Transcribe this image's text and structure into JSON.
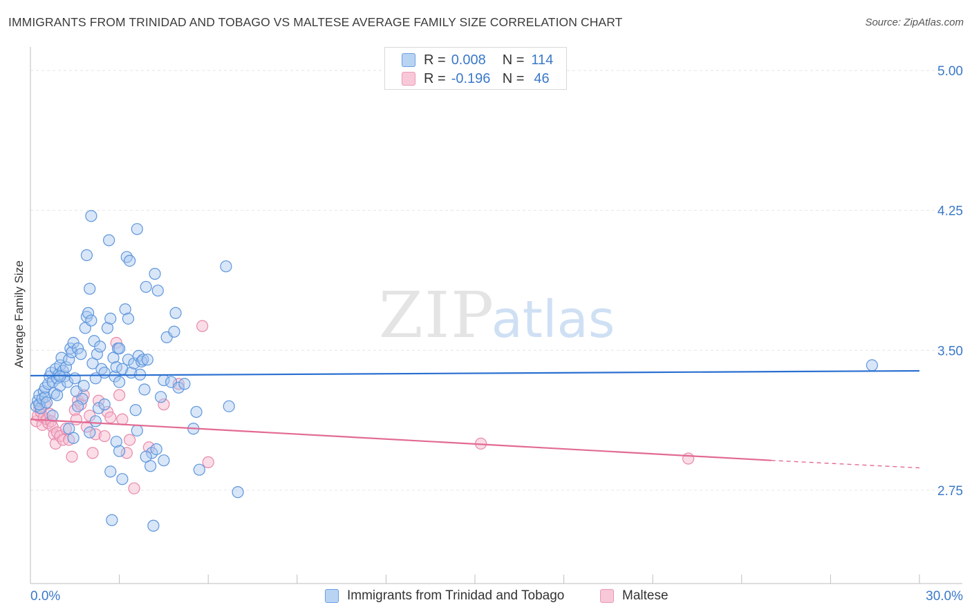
{
  "title": "IMMIGRANTS FROM TRINIDAD AND TOBAGO VS MALTESE AVERAGE FAMILY SIZE CORRELATION CHART",
  "source": "Source: ZipAtlas.com",
  "watermark": {
    "zip": "ZIP",
    "atlas": "atlas"
  },
  "legend": {
    "rows": [
      {
        "r_label": "R =",
        "r_value": "0.008",
        "n_label": "N =",
        "n_value": "114"
      },
      {
        "r_label": "R =",
        "r_value": "-0.196",
        "n_label": "N =",
        "n_value": "46"
      }
    ]
  },
  "colors": {
    "blue_fill": "#a8c8f0",
    "blue_stroke": "#5d95dc",
    "blue_line": "#2a6fd0",
    "pink_fill": "#f6bcd0",
    "pink_stroke": "#e888aa",
    "pink_line": "#e26a93",
    "tick_text": "#3a78c9",
    "grid": "#e6e6e6"
  },
  "chart_data": {
    "type": "scatter",
    "title": "IMMIGRANTS FROM TRINIDAD AND TOBAGO VS MALTESE AVERAGE FAMILY SIZE CORRELATION CHART",
    "xlabel": "",
    "ylabel": "Average Family Size",
    "xlim": [
      0,
      30
    ],
    "ylim": [
      2.25,
      5.1
    ],
    "x_tick_labels": [
      "0.0%",
      "30.0%"
    ],
    "y_ticks": [
      2.75,
      3.5,
      4.25,
      5.0
    ],
    "y_tick_labels": [
      "2.75",
      "3.50",
      "4.25",
      "5.00"
    ],
    "legend_position": "bottom",
    "series": [
      {
        "name": "Immigrants from Trinidad and Tobago",
        "r": 0.008,
        "n": 114,
        "trend": {
          "x0": 0,
          "y0": 3.364,
          "x1": 30,
          "y1": 3.39
        },
        "points": [
          [
            0.2,
            3.2
          ],
          [
            0.25,
            3.23
          ],
          [
            0.3,
            3.26
          ],
          [
            0.35,
            3.19
          ],
          [
            0.3,
            3.21
          ],
          [
            0.4,
            3.24
          ],
          [
            0.45,
            3.28
          ],
          [
            0.5,
            3.25
          ],
          [
            0.5,
            3.3
          ],
          [
            0.55,
            3.22
          ],
          [
            0.6,
            3.32
          ],
          [
            0.65,
            3.36
          ],
          [
            0.7,
            3.38
          ],
          [
            0.75,
            3.33
          ],
          [
            0.8,
            3.27
          ],
          [
            0.85,
            3.4
          ],
          [
            0.9,
            3.35
          ],
          [
            0.95,
            3.37
          ],
          [
            1.0,
            3.42
          ],
          [
            1.0,
            3.31
          ],
          [
            1.05,
            3.46
          ],
          [
            1.1,
            3.39
          ],
          [
            1.15,
            3.36
          ],
          [
            1.2,
            3.41
          ],
          [
            1.25,
            3.33
          ],
          [
            1.3,
            3.45
          ],
          [
            1.35,
            3.51
          ],
          [
            1.4,
            3.49
          ],
          [
            1.45,
            3.54
          ],
          [
            1.5,
            3.35
          ],
          [
            1.55,
            3.28
          ],
          [
            1.6,
            3.51
          ],
          [
            1.7,
            3.48
          ],
          [
            1.75,
            3.24
          ],
          [
            1.8,
            3.31
          ],
          [
            1.85,
            3.62
          ],
          [
            1.9,
            3.68
          ],
          [
            1.95,
            3.7
          ],
          [
            2.0,
            3.83
          ],
          [
            2.05,
            3.66
          ],
          [
            2.1,
            3.43
          ],
          [
            2.15,
            3.55
          ],
          [
            2.2,
            3.35
          ],
          [
            2.25,
            3.48
          ],
          [
            2.3,
            3.19
          ],
          [
            2.35,
            3.52
          ],
          [
            2.4,
            3.4
          ],
          [
            2.5,
            3.38
          ],
          [
            2.6,
            3.62
          ],
          [
            2.65,
            4.09
          ],
          [
            2.7,
            3.67
          ],
          [
            2.8,
            3.46
          ],
          [
            2.85,
            3.36
          ],
          [
            2.9,
            3.41
          ],
          [
            2.95,
            3.51
          ],
          [
            3.0,
            3.33
          ],
          [
            3.1,
            3.4
          ],
          [
            3.2,
            3.72
          ],
          [
            3.3,
            3.67
          ],
          [
            3.3,
            3.45
          ],
          [
            3.4,
            3.38
          ],
          [
            3.5,
            3.43
          ],
          [
            3.55,
            3.18
          ],
          [
            3.6,
            3.07
          ],
          [
            3.65,
            3.47
          ],
          [
            3.7,
            3.37
          ],
          [
            3.75,
            3.44
          ],
          [
            3.8,
            3.45
          ],
          [
            3.85,
            3.29
          ],
          [
            3.9,
            3.84
          ],
          [
            3.95,
            3.45
          ],
          [
            4.1,
            2.95
          ],
          [
            4.2,
            3.91
          ],
          [
            4.3,
            3.82
          ],
          [
            4.4,
            3.25
          ],
          [
            4.5,
            3.34
          ],
          [
            4.6,
            3.57
          ],
          [
            4.75,
            3.33
          ],
          [
            4.85,
            3.6
          ],
          [
            4.9,
            3.7
          ],
          [
            5.0,
            3.3
          ],
          [
            5.2,
            3.32
          ],
          [
            5.5,
            3.08
          ],
          [
            5.6,
            3.17
          ],
          [
            5.7,
            2.86
          ],
          [
            6.6,
            3.95
          ],
          [
            6.7,
            3.2
          ],
          [
            7.0,
            2.74
          ],
          [
            2.0,
            3.06
          ],
          [
            2.2,
            3.12
          ],
          [
            1.9,
            4.01
          ],
          [
            2.05,
            4.22
          ],
          [
            2.9,
            3.01
          ],
          [
            3.0,
            2.96
          ],
          [
            3.1,
            2.81
          ],
          [
            3.25,
            4.0
          ],
          [
            3.35,
            3.98
          ],
          [
            3.9,
            2.93
          ],
          [
            4.05,
            2.88
          ],
          [
            4.25,
            2.97
          ],
          [
            4.5,
            2.91
          ],
          [
            4.15,
            2.56
          ],
          [
            2.7,
            2.85
          ],
          [
            2.75,
            2.59
          ],
          [
            1.3,
            3.08
          ],
          [
            0.9,
            3.26
          ],
          [
            1.0,
            3.36
          ],
          [
            1.6,
            3.2
          ],
          [
            2.5,
            3.21
          ],
          [
            3.0,
            3.51
          ],
          [
            3.6,
            4.15
          ],
          [
            0.75,
            3.15
          ],
          [
            1.45,
            3.03
          ],
          [
            28.4,
            3.42
          ]
        ]
      },
      {
        "name": "Maltese",
        "r": -0.196,
        "n": 46,
        "trend": {
          "x0": 0,
          "y0": 3.13,
          "x1": 25,
          "y1": 2.91,
          "dash_x1": 30,
          "dash_y1": 2.87
        },
        "points": [
          [
            0.2,
            3.12
          ],
          [
            0.25,
            3.15
          ],
          [
            0.3,
            3.19
          ],
          [
            0.35,
            3.17
          ],
          [
            0.4,
            3.1
          ],
          [
            0.45,
            3.14
          ],
          [
            0.5,
            3.21
          ],
          [
            0.55,
            3.13
          ],
          [
            0.6,
            3.11
          ],
          [
            0.65,
            3.16
          ],
          [
            0.7,
            3.12
          ],
          [
            0.75,
            3.09
          ],
          [
            0.8,
            3.05
          ],
          [
            0.85,
            3.0
          ],
          [
            0.9,
            3.06
          ],
          [
            1.0,
            3.04
          ],
          [
            1.1,
            3.02
          ],
          [
            1.2,
            3.08
          ],
          [
            1.3,
            3.02
          ],
          [
            1.4,
            2.93
          ],
          [
            1.5,
            3.18
          ],
          [
            1.55,
            3.13
          ],
          [
            1.6,
            3.23
          ],
          [
            1.7,
            3.21
          ],
          [
            1.8,
            3.26
          ],
          [
            1.9,
            3.09
          ],
          [
            2.0,
            3.15
          ],
          [
            2.1,
            2.95
          ],
          [
            2.2,
            3.05
          ],
          [
            2.3,
            3.23
          ],
          [
            2.5,
            3.04
          ],
          [
            2.6,
            3.17
          ],
          [
            2.7,
            3.14
          ],
          [
            2.9,
            3.54
          ],
          [
            3.0,
            3.26
          ],
          [
            3.1,
            3.13
          ],
          [
            3.25,
            2.95
          ],
          [
            3.35,
            3.02
          ],
          [
            3.5,
            2.76
          ],
          [
            4.0,
            2.98
          ],
          [
            4.5,
            3.21
          ],
          [
            5.0,
            3.32
          ],
          [
            5.8,
            3.63
          ],
          [
            6.0,
            2.9
          ],
          [
            15.2,
            3.0
          ],
          [
            22.2,
            2.92
          ]
        ]
      }
    ]
  },
  "bottom_legend": {
    "series1": "Immigrants from Trinidad and Tobago",
    "series2": "Maltese"
  }
}
